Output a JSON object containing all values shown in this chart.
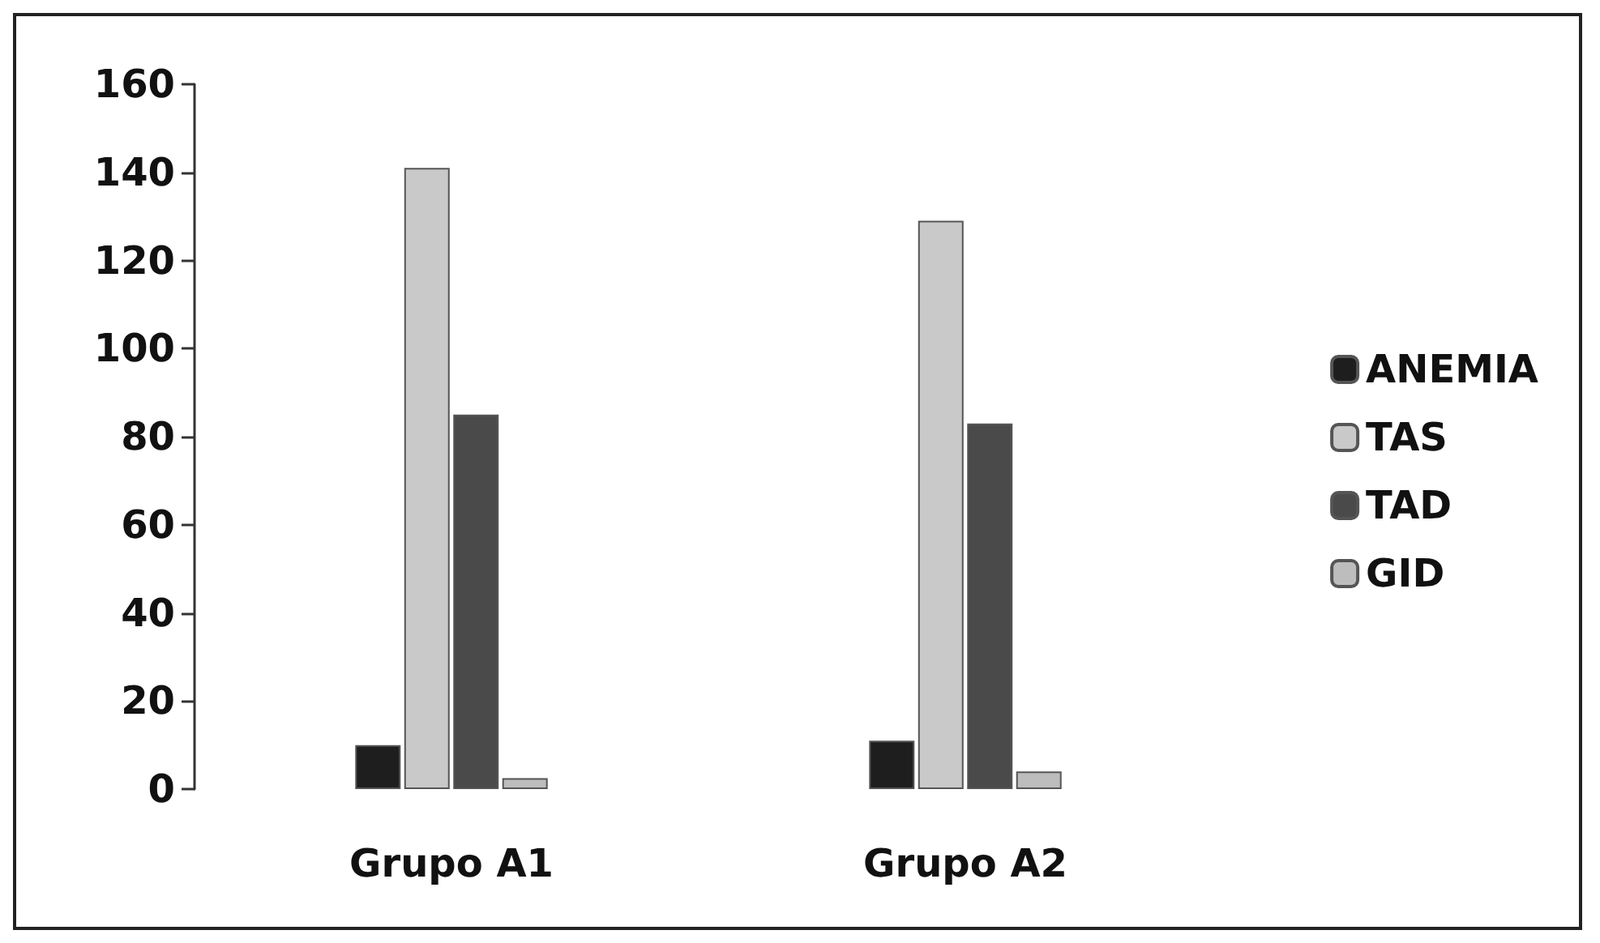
{
  "chart_data": {
    "type": "bar",
    "categories": [
      "Grupo A1",
      "Grupo A2"
    ],
    "series": [
      {
        "name": "ANEMIA",
        "color": "#1e1e1e",
        "values": [
          10,
          11
        ]
      },
      {
        "name": "TAS",
        "color": "#c9c9c9",
        "values": [
          141,
          129
        ]
      },
      {
        "name": "TAD",
        "color": "#4a4a4a",
        "values": [
          85,
          83
        ]
      },
      {
        "name": "GID",
        "color": "#bdbdbd",
        "values": [
          2.5,
          4
        ]
      }
    ],
    "ylim": [
      0,
      160
    ],
    "yticks": [
      0,
      20,
      40,
      60,
      80,
      100,
      120,
      140,
      160
    ],
    "grid": false,
    "legend": "right"
  }
}
